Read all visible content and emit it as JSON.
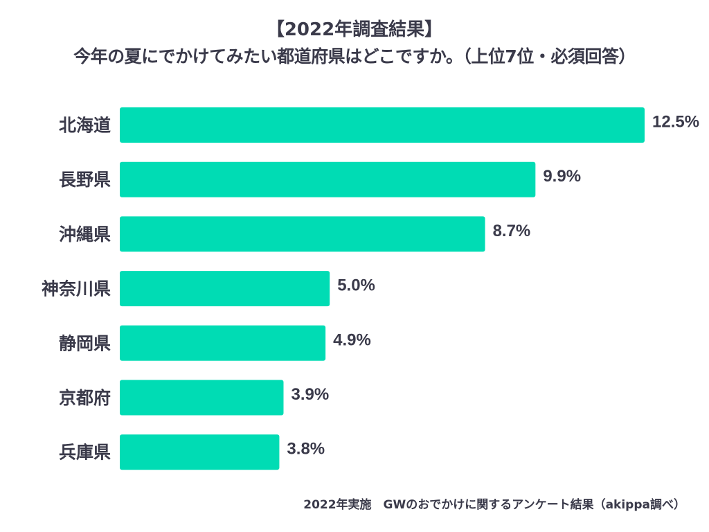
{
  "chart_data": {
    "type": "bar",
    "orientation": "horizontal",
    "title": "【2022年調査結果】",
    "subtitle": "今年の夏にでかけてみたい都道府県はどこですか。（上位7位・必須回答）",
    "categories": [
      "北海道",
      "長野県",
      "沖縄県",
      "神奈川県",
      "静岡県",
      "京都府",
      "兵庫県"
    ],
    "values": [
      12.5,
      9.9,
      8.7,
      5.0,
      4.9,
      3.9,
      3.8
    ],
    "value_labels": [
      "12.5%",
      "9.9%",
      "8.7%",
      "5.0%",
      "4.9%",
      "3.9%",
      "3.8%"
    ],
    "unit": "%",
    "xlim": [
      0,
      12.5
    ],
    "xlabel": "",
    "ylabel": "",
    "grid": false,
    "legend": "none",
    "bar_color": "#00dcb4",
    "text_color": "#3a3a4a"
  },
  "footer": "2022年実施　GWのおでかけに関するアンケート結果（akippa調べ）"
}
